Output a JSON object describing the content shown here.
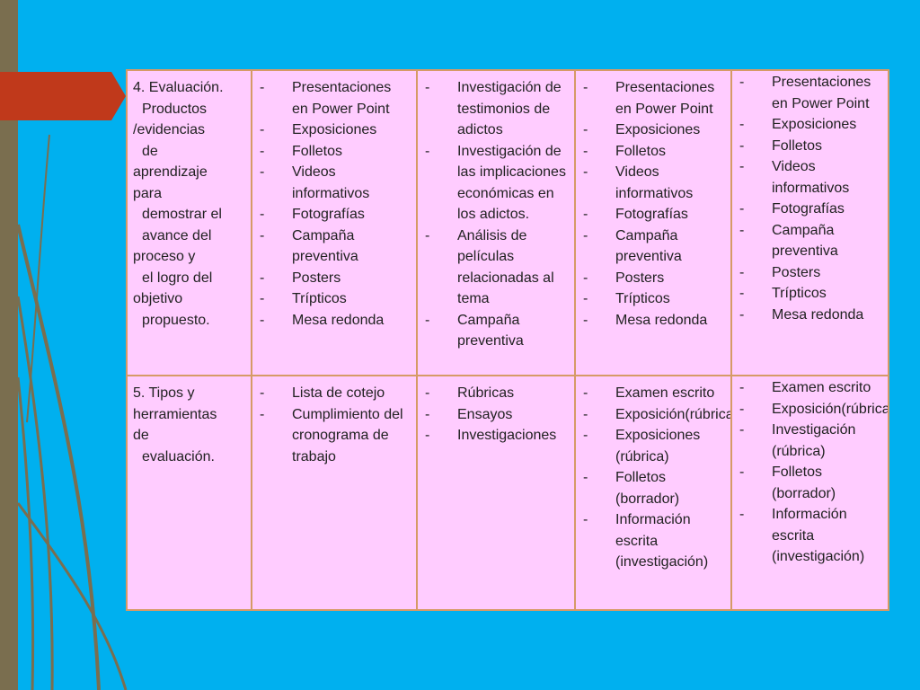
{
  "colors": {
    "background": "#00B0EF",
    "table_fill": "#FFCCFF",
    "table_border": "#D69A66",
    "accent_red": "#C0391B",
    "accent_olive": "#7A6E4F"
  },
  "rows": [
    {
      "label_lines": [
        {
          "text": "4. Evaluación.",
          "indent": false
        },
        {
          "text": "Productos",
          "indent": true
        },
        {
          "text": "/evidencias",
          "indent": false
        },
        {
          "text": "de",
          "indent": true
        },
        {
          "text": "aprendizaje",
          "indent": false
        },
        {
          "text": "para",
          "indent": false
        },
        {
          "text": "demostrar el",
          "indent": true
        },
        {
          "text": "avance del",
          "indent": true
        },
        {
          "text": "proceso y",
          "indent": false
        },
        {
          "text": "el logro del",
          "indent": true
        },
        {
          "text": "objetivo",
          "indent": false
        },
        {
          "text": "propuesto.",
          "indent": true
        }
      ],
      "cells": [
        [
          "Presentaciones en Power Point",
          "Exposiciones",
          "Folletos",
          "Videos informativos",
          "Fotografías",
          "Campaña preventiva",
          "Posters",
          "Trípticos",
          "Mesa redonda"
        ],
        [
          "Investigación de testimonios de adictos",
          "Investigación de las implicaciones económicas en los adictos.",
          "Análisis de películas relacionadas al tema",
          "Campaña preventiva"
        ],
        [
          "Presentaciones en Power Point",
          "Exposiciones",
          "Folletos",
          "Videos informativos",
          "Fotografías",
          "Campaña preventiva",
          "Posters",
          "Trípticos",
          "Mesa redonda"
        ],
        [
          "Presentaciones en Power Point",
          "Exposiciones",
          "Folletos",
          "Videos informativos",
          "Fotografías",
          "Campaña preventiva",
          "Posters",
          "Trípticos",
          "Mesa redonda"
        ]
      ]
    },
    {
      "label_lines": [
        {
          "text": "5. Tipos y",
          "indent": false
        },
        {
          "text": "herramientas",
          "indent": false
        },
        {
          "text": "de",
          "indent": false
        },
        {
          "text": "evaluación.",
          "indent": true
        }
      ],
      "cells": [
        [
          "Lista de cotejo",
          "Cumplimiento del cronograma de trabajo"
        ],
        [
          "Rúbricas",
          "Ensayos",
          "Investigaciones"
        ],
        [
          "Examen escrito",
          "Exposición(rúbrica)",
          "Exposiciones (rúbrica)",
          "Folletos (borrador)",
          "Información escrita (investigación)"
        ],
        [
          "Examen escrito",
          "Exposición(rúbrica)",
          "Investigación (rúbrica)",
          "Folletos (borrador)",
          "Información escrita (investigación)"
        ]
      ]
    }
  ]
}
